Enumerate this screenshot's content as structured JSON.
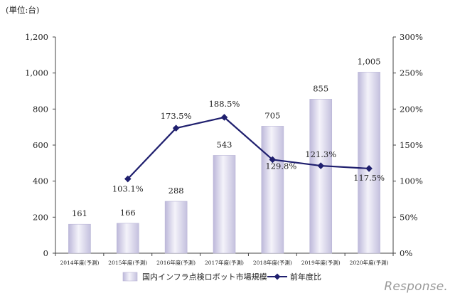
{
  "chart_data": {
    "type": "bar",
    "unit_label": "(単位:台)",
    "categories": [
      "2014年度(予測)",
      "2015年度(予測)",
      "2016年度(予測)",
      "2017年度(予測)",
      "2018年度(予測)",
      "2019年度(予測)",
      "2020年度(予測)"
    ],
    "series": [
      {
        "name": "国内インフラ点検ロボット市場規模",
        "type": "bar",
        "axis": "left",
        "values": [
          161,
          166,
          288,
          543,
          705,
          855,
          1005
        ],
        "labels": [
          "161",
          "166",
          "288",
          "543",
          "705",
          "855",
          "1,005"
        ],
        "color": "#d6d3e8"
      },
      {
        "name": "前年度比",
        "type": "line",
        "axis": "right",
        "values": [
          null,
          103.1,
          173.5,
          188.5,
          129.8,
          121.3,
          117.5
        ],
        "labels": [
          null,
          "103.1%",
          "173.5%",
          "188.5%",
          "129.8%",
          "121.3%",
          "117.5%"
        ],
        "color": "#1f1f6e"
      }
    ],
    "y_left": {
      "min": 0,
      "max": 1200,
      "ticks": [
        0,
        200,
        400,
        600,
        800,
        1000,
        1200
      ],
      "tick_labels": [
        "0",
        "200",
        "400",
        "600",
        "800",
        "1,000",
        "1,200"
      ]
    },
    "y_right": {
      "min": 0,
      "max": 300,
      "ticks": [
        0,
        50,
        100,
        150,
        200,
        250,
        300
      ],
      "tick_labels": [
        "0%",
        "50%",
        "100%",
        "150%",
        "200%",
        "250%",
        "300%"
      ]
    },
    "grid": false,
    "legend_position": "bottom-center"
  },
  "watermark": "Response."
}
